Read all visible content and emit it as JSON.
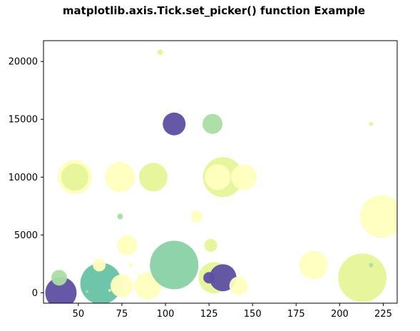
{
  "chart_data": {
    "type": "scatter",
    "title": "matplotlib.axis.Tick.set_picker() function Example",
    "xlabel": "",
    "ylabel": "",
    "xlim": [
      30,
      233
    ],
    "ylim": [
      -900,
      21800
    ],
    "xticks": [
      50,
      75,
      100,
      125,
      150,
      175,
      200,
      225
    ],
    "yticks": [
      0,
      5000,
      10000,
      15000,
      20000
    ],
    "grid": false,
    "colormap": [
      "#5e4fa2",
      "#66c2a5",
      "#abdda4",
      "#e6f598",
      "#ffffbf"
    ],
    "points": [
      {
        "x": 40,
        "y": 0,
        "size": 22,
        "color": "#5e4fa2"
      },
      {
        "x": 39,
        "y": 1300,
        "size": 11,
        "color": "#abdda4"
      },
      {
        "x": 63,
        "y": 800,
        "size": 29,
        "color": "#66c2a5"
      },
      {
        "x": 62,
        "y": 2400,
        "size": 9,
        "color": "#ffffbf"
      },
      {
        "x": 55,
        "y": 100,
        "size": 2,
        "color": "#abdda4"
      },
      {
        "x": 68,
        "y": 200,
        "size": 2,
        "color": "#e6f598"
      },
      {
        "x": 48,
        "y": 10000,
        "size": 24,
        "color": "#ffffbf"
      },
      {
        "x": 48,
        "y": 10000,
        "size": 19,
        "color": "#e6f598"
      },
      {
        "x": 74,
        "y": 10000,
        "size": 21,
        "color": "#ffffbf"
      },
      {
        "x": 74,
        "y": 6600,
        "size": 4,
        "color": "#abdda4"
      },
      {
        "x": 78,
        "y": 4100,
        "size": 14,
        "color": "#ffffbf"
      },
      {
        "x": 80,
        "y": 2400,
        "size": 3,
        "color": "#ffffbf"
      },
      {
        "x": 75,
        "y": 600,
        "size": 16,
        "color": "#ffffbf"
      },
      {
        "x": 90,
        "y": 600,
        "size": 19,
        "color": "#ffffbf"
      },
      {
        "x": 93,
        "y": 10000,
        "size": 20,
        "color": "#e6f598"
      },
      {
        "x": 97,
        "y": 20800,
        "size": 4,
        "color": "#e6f598"
      },
      {
        "x": 105,
        "y": 14600,
        "size": 16,
        "color": "#5e4fa2"
      },
      {
        "x": 105,
        "y": 2400,
        "size": 34,
        "color": "#88d1a4"
      },
      {
        "x": 118,
        "y": 6600,
        "size": 8,
        "color": "#ffffbf"
      },
      {
        "x": 127,
        "y": 14600,
        "size": 14,
        "color": "#abdda4"
      },
      {
        "x": 126,
        "y": 4100,
        "size": 9,
        "color": "#e6f598"
      },
      {
        "x": 133,
        "y": 10000,
        "size": 28,
        "color": "#e6f598"
      },
      {
        "x": 130,
        "y": 10000,
        "size": 18,
        "color": "#ffffbf"
      },
      {
        "x": 145,
        "y": 10000,
        "size": 18,
        "color": "#ffffbf"
      },
      {
        "x": 128,
        "y": 1300,
        "size": 22,
        "color": "#e6f598"
      },
      {
        "x": 125,
        "y": 1300,
        "size": 8,
        "color": "#5e4fa2"
      },
      {
        "x": 133,
        "y": 1300,
        "size": 19,
        "color": "#5e4fa2"
      },
      {
        "x": 142,
        "y": 600,
        "size": 13,
        "color": "#ffffbf"
      },
      {
        "x": 185,
        "y": 2400,
        "size": 20,
        "color": "#ffffbf"
      },
      {
        "x": 213,
        "y": 1300,
        "size": 34,
        "color": "#e6f598"
      },
      {
        "x": 218,
        "y": 2400,
        "size": 3,
        "color": "#abdda4"
      },
      {
        "x": 218,
        "y": 14600,
        "size": 3,
        "color": "#e6f598"
      },
      {
        "x": 224,
        "y": 6600,
        "size": 30,
        "color": "#ffffbf"
      }
    ]
  }
}
